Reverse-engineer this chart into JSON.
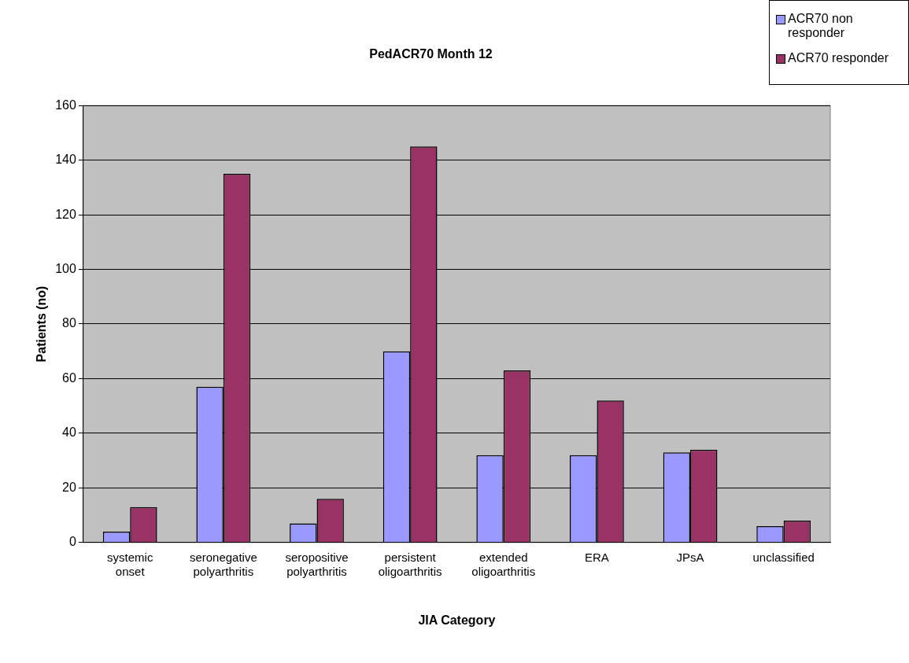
{
  "chart_data": {
    "type": "bar",
    "title": "PedACR70 Month 12",
    "xlabel": "JIA Category",
    "ylabel": "Patients (no)",
    "categories": [
      "systemic onset",
      "seronegative polyarthritis",
      "seropositive polyarthritis",
      "persistent oligoarthritis",
      "extended oligoarthritis",
      "ERA",
      "JPsA",
      "unclassified"
    ],
    "series": [
      {
        "name": "ACR70 non responder",
        "color": "#9999ff",
        "values": [
          4,
          57,
          7,
          70,
          32,
          32,
          33,
          6
        ]
      },
      {
        "name": "ACR70 responder",
        "color": "#993366",
        "values": [
          13,
          135,
          16,
          145,
          63,
          52,
          34,
          8
        ]
      }
    ],
    "ylim": [
      0,
      160
    ],
    "yticks": [
      0,
      20,
      40,
      60,
      80,
      100,
      120,
      140,
      160
    ],
    "grid": "y",
    "legend": "top right"
  }
}
